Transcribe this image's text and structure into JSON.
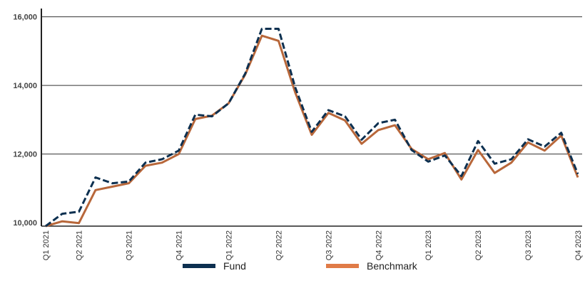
{
  "chart_data": {
    "type": "line",
    "title": "",
    "xlabel": "",
    "ylabel": "",
    "ylim": [
      9900,
      16200
    ],
    "yticks": [
      "10,000",
      "12,000",
      "14,000",
      "16,000"
    ],
    "ytick_values": [
      10000,
      12000,
      14000,
      16000
    ],
    "grid": {
      "horizontal": true,
      "vertical": false
    },
    "x": [
      "Q1 2021",
      "",
      "Q2 2021",
      "",
      "",
      "Q3 2021",
      "",
      "",
      "Q4 2021",
      "",
      "",
      "Q1 2022",
      "",
      "",
      "Q2 2022",
      "",
      "",
      "Q3 2022",
      "",
      "",
      "Q4 2022",
      "",
      "",
      "Q1 2023",
      "",
      "",
      "Q2 2023",
      "",
      "",
      "Q3 2023",
      "",
      "",
      "Q4 2023"
    ],
    "x_tick_labels": [
      {
        "index": 0,
        "label": "Q1 2021"
      },
      {
        "index": 2,
        "label": "Q2 2021"
      },
      {
        "index": 5,
        "label": "Q3 2021"
      },
      {
        "index": 8,
        "label": "Q4 2021"
      },
      {
        "index": 11,
        "label": "Q1 2022"
      },
      {
        "index": 14,
        "label": "Q2 2022"
      },
      {
        "index": 17,
        "label": "Q3 2022"
      },
      {
        "index": 20,
        "label": "Q4 2022"
      },
      {
        "index": 23,
        "label": "Q1 2023"
      },
      {
        "index": 26,
        "label": "Q2 2023"
      },
      {
        "index": 29,
        "label": "Q3 2023"
      },
      {
        "index": 32,
        "label": "Q4 2023"
      }
    ],
    "legend_position": "bottom",
    "series": [
      {
        "name": "Fund",
        "color": "#0d3050",
        "style": "dashed",
        "values": [
          9900,
          10260,
          10320,
          11320,
          11150,
          11200,
          11750,
          11850,
          12100,
          13150,
          13100,
          13480,
          14350,
          15650,
          15650,
          13950,
          12650,
          13280,
          13100,
          12420,
          12900,
          13000,
          12120,
          11780,
          11960,
          11360,
          12380,
          11720,
          11850,
          12430,
          12220,
          12620,
          11420
        ]
      },
      {
        "name": "Benchmark",
        "color": "#b8673a",
        "legend_color": "#e07b47",
        "style": "solid",
        "values": [
          9900,
          10040,
          9990,
          10950,
          11050,
          11150,
          11660,
          11750,
          12000,
          13020,
          13120,
          13480,
          14320,
          15450,
          15300,
          13800,
          12560,
          13200,
          12980,
          12300,
          12700,
          12840,
          12150,
          11850,
          12030,
          11260,
          12120,
          11450,
          11750,
          12340,
          12100,
          12540,
          11320
        ]
      }
    ]
  }
}
